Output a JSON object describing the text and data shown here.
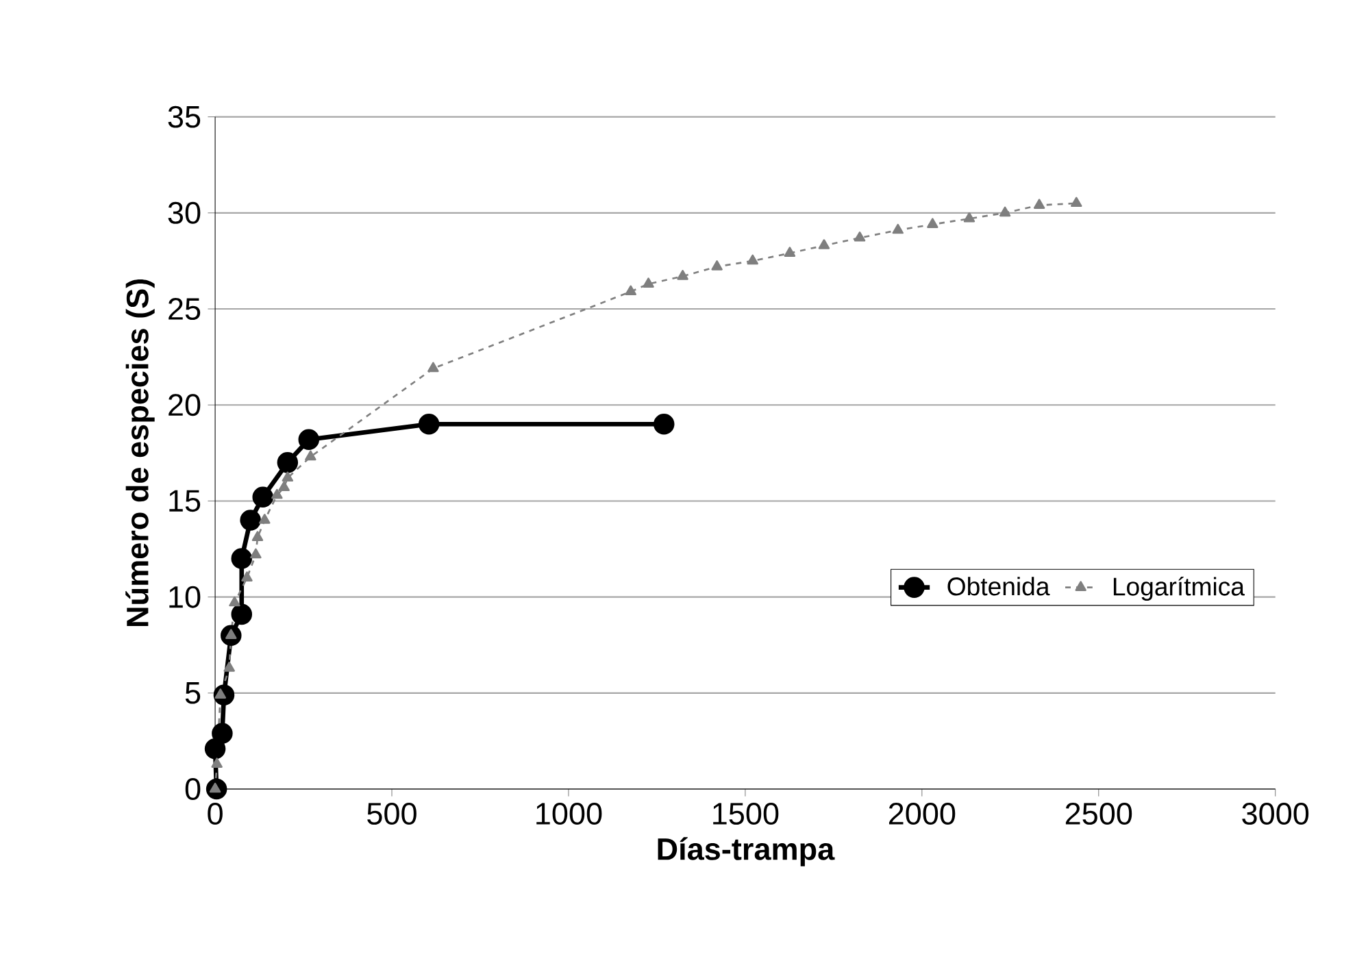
{
  "chart_data": {
    "type": "line",
    "xlabel": "Días-trampa",
    "ylabel": "Número de especies (S)",
    "xlim": [
      0,
      3000
    ],
    "ylim": [
      0,
      35
    ],
    "xticks": [
      0,
      500,
      1000,
      1500,
      2000,
      2500,
      3000
    ],
    "yticks": [
      0,
      5,
      10,
      15,
      20,
      25,
      30,
      35
    ],
    "grid": "y",
    "legend": "right",
    "series": [
      {
        "name": "Obtenida",
        "color": "#000000",
        "marker": "circle",
        "line_style": "solid",
        "x": [
          4,
          0,
          20,
          25,
          45,
          75,
          75,
          100,
          135,
          205,
          265,
          605,
          1270
        ],
        "values": [
          0,
          2.1,
          2.9,
          4.9,
          8,
          9.1,
          12,
          14,
          15.2,
          17,
          18.2,
          19,
          19
        ]
      },
      {
        "name": "Logarítmica",
        "color": "#7f7f7f",
        "marker": "triangle",
        "line_style": "dashed",
        "x": [
          0,
          5,
          15,
          40,
          45,
          55,
          90,
          115,
          120,
          140,
          175,
          195,
          205,
          270,
          617,
          1176,
          1226,
          1323,
          1420,
          1521,
          1626,
          1723,
          1824,
          1932,
          2030,
          2134,
          2235,
          2332,
          2437
        ],
        "values": [
          0,
          1.3,
          4.9,
          6.3,
          8,
          9.7,
          11,
          12.2,
          13.1,
          14,
          15.3,
          15.7,
          16.2,
          17.3,
          21.9,
          25.9,
          26.3,
          26.7,
          27.2,
          27.5,
          27.9,
          28.3,
          28.7,
          29.1,
          29.4,
          29.7,
          30.0,
          30.4,
          30.5
        ]
      }
    ]
  }
}
